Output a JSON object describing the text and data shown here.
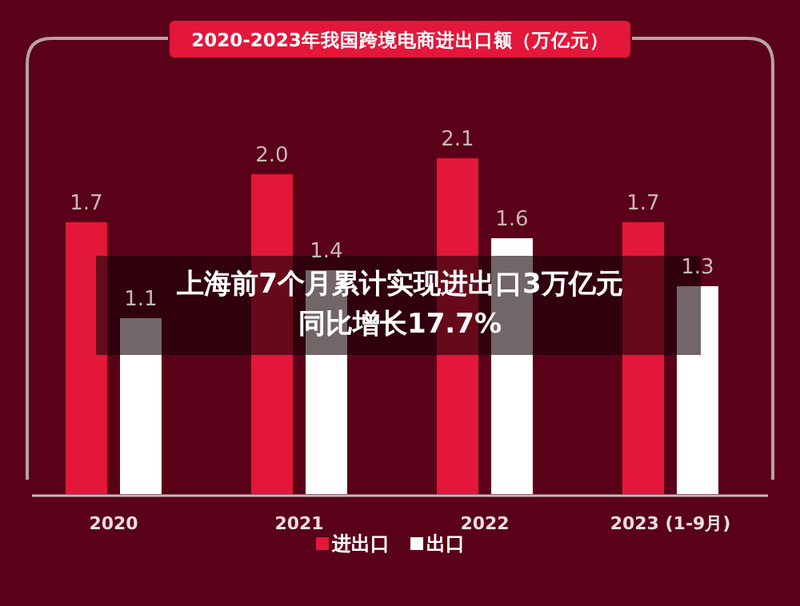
{
  "chart_data": {
    "type": "bar",
    "title": "2020-2023年我国跨境电商进出口额（万亿元）",
    "categories": [
      "2020",
      "2021",
      "2022",
      "2023 (1-9月)"
    ],
    "series": [
      {
        "name": "进出口",
        "color": "#e3173a",
        "values": [
          1.7,
          2.0,
          2.1,
          1.7
        ],
        "value_labels": [
          "1.7",
          "2.0",
          "2.1",
          "1.7"
        ]
      },
      {
        "name": "出口",
        "color": "#ffffff",
        "values": [
          1.1,
          1.4,
          1.6,
          1.3
        ],
        "value_labels": [
          "1.1",
          "1.4",
          "1.6",
          "1.3"
        ]
      }
    ],
    "legend": "bottom",
    "annotations": [
      "上海前7个月累计实现进出口3万亿元",
      "同比增长17.7%"
    ]
  }
}
